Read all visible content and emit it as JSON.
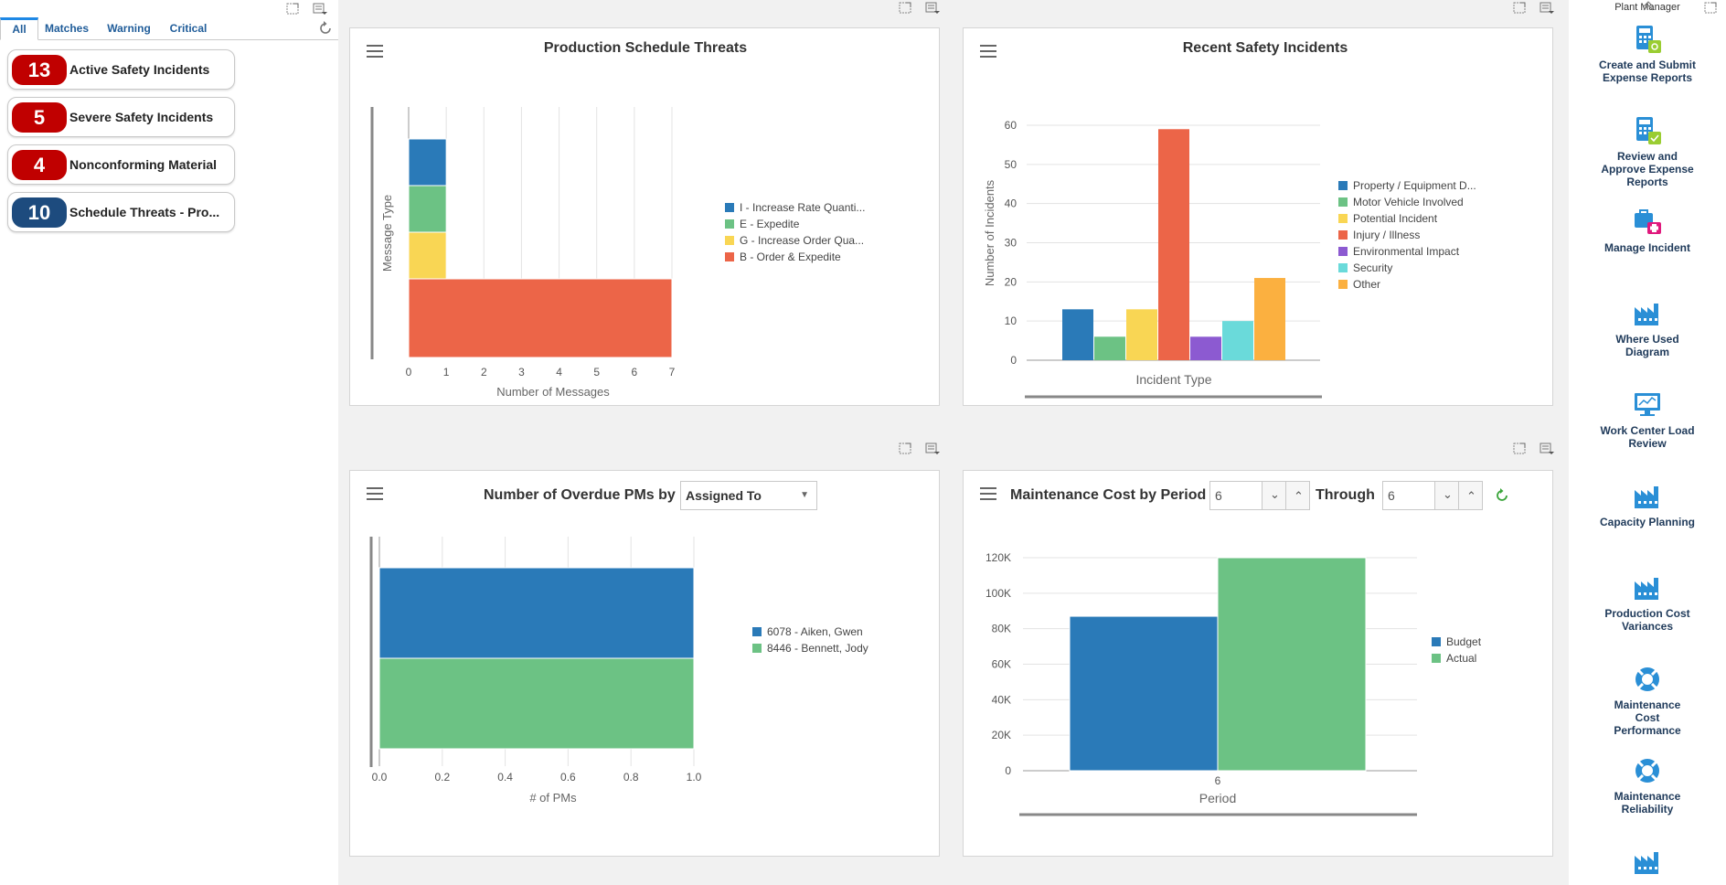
{
  "tabs": [
    "All",
    "Matches",
    "Warning",
    "Critical"
  ],
  "alerts": [
    {
      "count": "13",
      "label": "Active Safety Incidents",
      "color": "#c00000"
    },
    {
      "count": "5",
      "label": "Severe Safety Incidents",
      "color": "#c00000"
    },
    {
      "count": "4",
      "label": "Nonconforming Material",
      "color": "#c00000"
    },
    {
      "count": "10",
      "label": "Schedule Threats - Pro...",
      "color": "#1d4b7e"
    }
  ],
  "panels": {
    "production": {
      "title": "Production Schedule Threats"
    },
    "safety": {
      "title": "Recent Safety Incidents"
    },
    "overdue": {
      "title": "Number of Overdue PMs by",
      "select_value": "Assigned To"
    },
    "maintenance": {
      "title": "Maintenance Cost by Period",
      "from_value": "6",
      "through_label": "Through",
      "to_value": "6"
    }
  },
  "chart_data": [
    {
      "type": "bar",
      "orientation": "horizontal-stacked",
      "title": "Production Schedule Threats",
      "xlabel": "Number of Messages",
      "ylabel": "Message Type",
      "xlim": [
        0,
        7
      ],
      "xticks": [
        "0",
        "1",
        "2",
        "3",
        "4",
        "5",
        "6",
        "7"
      ],
      "series": [
        {
          "name": "I - Increase Rate Quanti...",
          "value": 1,
          "color": "#2a7ab8"
        },
        {
          "name": "E - Expedite",
          "value": 1,
          "color": "#6cc284"
        },
        {
          "name": "G - Increase Order Qua...",
          "value": 1,
          "color": "#f9d654"
        },
        {
          "name": "B - Order & Expedite",
          "value": 7,
          "color": "#ec6548"
        }
      ]
    },
    {
      "type": "bar",
      "title": "Recent Safety Incidents",
      "xlabel": "Incident Type",
      "ylabel": "Number of Incidents",
      "ylim": [
        0,
        60
      ],
      "yticks": [
        "0",
        "10",
        "20",
        "30",
        "40",
        "50",
        "60"
      ],
      "series": [
        {
          "name": "Property / Equipment D...",
          "value": 13,
          "color": "#2a7ab8"
        },
        {
          "name": "Motor Vehicle Involved",
          "value": 6,
          "color": "#6cc284"
        },
        {
          "name": "Potential Incident",
          "value": 13,
          "color": "#f9d654"
        },
        {
          "name": "Injury / Illness",
          "value": 59,
          "color": "#ec6548"
        },
        {
          "name": "Environmental Impact",
          "value": 6,
          "color": "#8c5ad1"
        },
        {
          "name": "Security",
          "value": 10,
          "color": "#6adada"
        },
        {
          "name": "Other",
          "value": 21,
          "color": "#fbb040"
        }
      ]
    },
    {
      "type": "bar",
      "orientation": "horizontal",
      "title": "Number of Overdue PMs by",
      "xlabel": "# of PMs",
      "xlim": [
        0,
        1
      ],
      "xticks": [
        "0.0",
        "0.2",
        "0.4",
        "0.6",
        "0.8",
        "1.0"
      ],
      "series": [
        {
          "name": "6078 - Aiken, Gwen",
          "value": 1,
          "color": "#2a7ab8"
        },
        {
          "name": "8446 - Bennett, Jody",
          "value": 1,
          "color": "#6cc284"
        }
      ]
    },
    {
      "type": "bar",
      "title": "Maintenance Cost by Period",
      "xlabel": "Period",
      "categories": [
        "6"
      ],
      "ylim": [
        0,
        120000
      ],
      "yticks": [
        "0",
        "20K",
        "40K",
        "60K",
        "80K",
        "100K",
        "120K"
      ],
      "series": [
        {
          "name": "Budget",
          "values": [
            87000
          ],
          "color": "#2a7ab8"
        },
        {
          "name": "Actual",
          "values": [
            120000
          ],
          "color": "#6cc284"
        }
      ]
    }
  ],
  "right_panel": {
    "title": "Plant Manager",
    "items": [
      {
        "label": "Create and Submit Expense Reports",
        "icon": "calculator-icon"
      },
      {
        "label": "Review and Approve Expense Reports",
        "icon": "calculator-icon"
      },
      {
        "label": "Manage Incident",
        "icon": "first-aid-icon"
      },
      {
        "label": "Where Used Diagram",
        "icon": "factory-icon"
      },
      {
        "label": "Work Center Load Review",
        "icon": "monitor-icon"
      },
      {
        "label": "Capacity Planning",
        "icon": "factory-icon"
      },
      {
        "label": "Production Cost Variances",
        "icon": "factory-icon"
      },
      {
        "label": "Maintenance Cost Performance",
        "icon": "lifebuoy-icon"
      },
      {
        "label": "Maintenance Reliability",
        "icon": "lifebuoy-icon"
      },
      {
        "label": "",
        "icon": "factory-icon"
      }
    ]
  }
}
